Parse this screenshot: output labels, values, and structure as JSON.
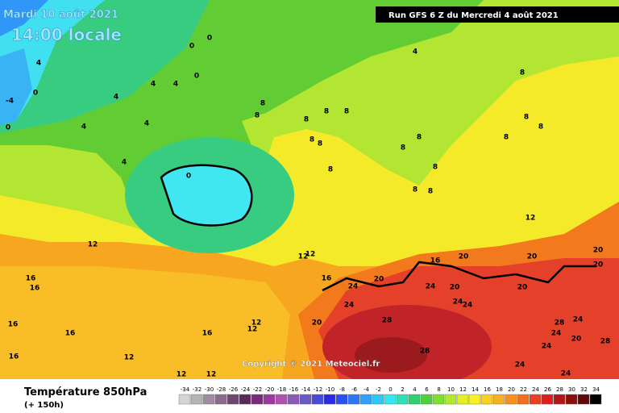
{
  "header": {
    "date": "Mardi 10 août 2021",
    "time": "14:00 locale",
    "run": "Run GFS 6 Z du Mercredi 4 août 2021"
  },
  "copyright": "Copyright © 2021 Meteociel.fr",
  "footer": {
    "title": "Température 850hPa",
    "lead": "(+ 150h)"
  },
  "map": {
    "contour_labels": [
      0,
      0,
      0,
      0,
      0,
      0,
      4,
      4,
      4,
      4,
      4,
      4,
      4,
      4,
      -4,
      8,
      8,
      8,
      8,
      8,
      8,
      8,
      8,
      8,
      8,
      8,
      8,
      8,
      8,
      8,
      8,
      8,
      12,
      12,
      12,
      12,
      12,
      12,
      12,
      12,
      12,
      16,
      16,
      16,
      16,
      16,
      16,
      16,
      20,
      20,
      20,
      20,
      20,
      20,
      20,
      20,
      24,
      24,
      24,
      24,
      24,
      24,
      24,
      24,
      24,
      24,
      28,
      28,
      28,
      28,
      16,
      20
    ]
  },
  "legend": {
    "values": [
      -34,
      -32,
      -30,
      -28,
      -26,
      -24,
      -22,
      -20,
      -18,
      -16,
      -14,
      -12,
      -10,
      -8,
      -6,
      -4,
      -2,
      0,
      2,
      4,
      6,
      8,
      10,
      12,
      14,
      16,
      18,
      20,
      22,
      24,
      26,
      28,
      30,
      32,
      34
    ],
    "colors": [
      "#d4d4d4",
      "#b4b4b4",
      "#a08ca0",
      "#8c6a8c",
      "#6e466e",
      "#5a2a5a",
      "#7a2a7a",
      "#9a3a9a",
      "#b050b0",
      "#8a5ab4",
      "#6a5ac8",
      "#4a4ad8",
      "#2a2ae0",
      "#2a50f0",
      "#2a78f8",
      "#30a0f8",
      "#30c8f0",
      "#30e8f0",
      "#30e0b0",
      "#30d070",
      "#50d040",
      "#80e030",
      "#b0ea30",
      "#e0f020",
      "#f8f020",
      "#f8d020",
      "#f8b020",
      "#f89020",
      "#f07020",
      "#e84020",
      "#d82020",
      "#b01818",
      "#8a1010",
      "#600808",
      "#000000"
    ]
  }
}
